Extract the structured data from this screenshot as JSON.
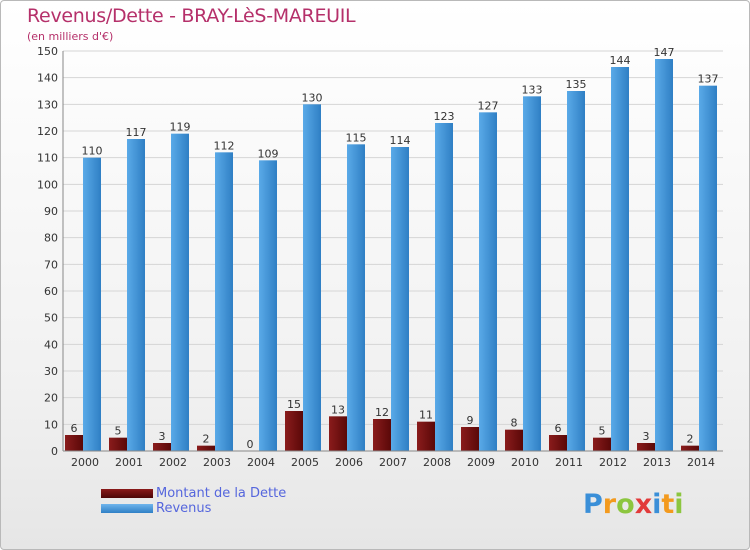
{
  "title": "Revenus/Dette - BRAY-LèS-MAREUIL",
  "subtitle": "(en milliers d'€)",
  "logo": {
    "letters": [
      "P",
      "r",
      "o",
      "x",
      "i",
      "t",
      "i"
    ]
  },
  "colors": {
    "dette": "#6b0c0c",
    "revenus": "#3f95d8",
    "title": "#b5306a",
    "legend_text": "#5566dd",
    "grid": "#d5d5d5"
  },
  "legend": [
    {
      "name": "Montant de la Dette",
      "color": "#6b0c0c"
    },
    {
      "name": "Revenus",
      "color": "#3f95d8"
    }
  ],
  "chart_data": {
    "type": "bar",
    "title": "Revenus/Dette - BRAY-LèS-MAREUIL",
    "subtitle": "(en milliers d'€)",
    "categories": [
      "2000",
      "2001",
      "2002",
      "2003",
      "2004",
      "2005",
      "2006",
      "2007",
      "2008",
      "2009",
      "2010",
      "2011",
      "2012",
      "2013",
      "2014"
    ],
    "series": [
      {
        "name": "Montant de la Dette",
        "values": [
          6,
          5,
          3,
          2,
          0,
          15,
          13,
          12,
          11,
          9,
          8,
          6,
          5,
          3,
          2
        ]
      },
      {
        "name": "Revenus",
        "values": [
          110,
          117,
          119,
          112,
          109,
          130,
          115,
          114,
          123,
          127,
          133,
          135,
          144,
          147,
          137
        ]
      }
    ],
    "yticks": [
      0,
      10,
      20,
      30,
      40,
      50,
      60,
      70,
      80,
      90,
      100,
      110,
      120,
      130,
      140,
      150
    ],
    "ylim": [
      0,
      150
    ],
    "grid": true,
    "legend_position": "bottom-left"
  }
}
